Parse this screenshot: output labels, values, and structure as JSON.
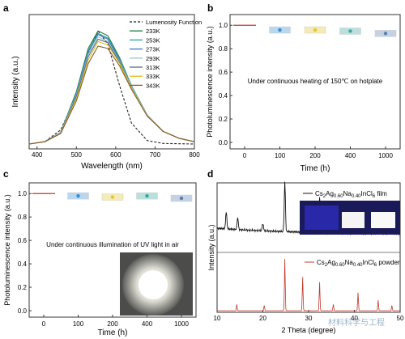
{
  "figure": {
    "watermark": "材料科学与工程"
  },
  "chart_data": [
    {
      "panel": "a",
      "type": "line",
      "xlabel": "Wavelength (nm)",
      "ylabel": "Intensity (a.u.)",
      "xlim": [
        380,
        800
      ],
      "xticks": [
        400,
        500,
        600,
        700,
        800
      ],
      "legend_position": "top-right",
      "series": [
        {
          "name": "Lumenosity Function",
          "color": "#222222",
          "dash": true,
          "x": [
            380,
            420,
            460,
            500,
            530,
            555,
            580,
            610,
            640,
            680,
            720,
            800
          ],
          "y": [
            0.0,
            0.02,
            0.12,
            0.42,
            0.78,
            0.97,
            0.86,
            0.5,
            0.18,
            0.03,
            0.005,
            0.0
          ]
        },
        {
          "name": "233K",
          "color": "#1b7a3a",
          "x": [
            380,
            420,
            460,
            500,
            530,
            555,
            580,
            610,
            640,
            680,
            720,
            760,
            800
          ],
          "y": [
            0.0,
            0.02,
            0.1,
            0.45,
            0.82,
            0.97,
            0.93,
            0.74,
            0.5,
            0.25,
            0.11,
            0.05,
            0.02
          ]
        },
        {
          "name": "253K",
          "color": "#2aa198",
          "x": [
            380,
            420,
            460,
            500,
            530,
            555,
            580,
            610,
            640,
            680,
            720,
            760,
            800
          ],
          "y": [
            0.0,
            0.02,
            0.1,
            0.44,
            0.8,
            0.95,
            0.91,
            0.73,
            0.5,
            0.25,
            0.11,
            0.05,
            0.02
          ]
        },
        {
          "name": "273K",
          "color": "#3c78c8",
          "x": [
            380,
            420,
            460,
            500,
            530,
            555,
            580,
            610,
            640,
            680,
            720,
            760,
            800
          ],
          "y": [
            0.0,
            0.02,
            0.1,
            0.43,
            0.79,
            0.94,
            0.9,
            0.72,
            0.49,
            0.25,
            0.11,
            0.05,
            0.02
          ]
        },
        {
          "name": "293K",
          "color": "#9ec2c4",
          "x": [
            380,
            420,
            460,
            500,
            530,
            555,
            580,
            610,
            640,
            680,
            720,
            760,
            800
          ],
          "y": [
            0.0,
            0.02,
            0.1,
            0.42,
            0.77,
            0.92,
            0.88,
            0.71,
            0.49,
            0.25,
            0.11,
            0.05,
            0.02
          ]
        },
        {
          "name": "313K",
          "color": "#556b8a",
          "x": [
            380,
            420,
            460,
            500,
            530,
            555,
            580,
            610,
            640,
            680,
            720,
            760,
            800
          ],
          "y": [
            0.0,
            0.02,
            0.09,
            0.41,
            0.75,
            0.9,
            0.87,
            0.7,
            0.48,
            0.24,
            0.11,
            0.05,
            0.02
          ]
        },
        {
          "name": "333K",
          "color": "#d9c21c",
          "x": [
            380,
            420,
            460,
            500,
            530,
            555,
            580,
            610,
            640,
            680,
            720,
            760,
            800
          ],
          "y": [
            0.0,
            0.02,
            0.09,
            0.39,
            0.72,
            0.88,
            0.85,
            0.69,
            0.48,
            0.24,
            0.11,
            0.05,
            0.02
          ]
        },
        {
          "name": "343K",
          "color": "#8a5a2b",
          "x": [
            380,
            420,
            460,
            500,
            530,
            555,
            580,
            610,
            640,
            680,
            720,
            760,
            800
          ],
          "y": [
            0.0,
            0.02,
            0.09,
            0.37,
            0.69,
            0.84,
            0.82,
            0.67,
            0.47,
            0.24,
            0.11,
            0.05,
            0.02
          ]
        }
      ]
    },
    {
      "panel": "b",
      "type": "scatter",
      "xlabel": "Time (h)",
      "ylabel": "Photoluminescence intensity (a.u.)",
      "annotation": "Under continuous heating of 150℃ on hotplate",
      "categories": [
        "0",
        "100",
        "200",
        "400",
        "1000"
      ],
      "ylim": [
        0.0,
        1.05
      ],
      "yticks": [
        0.0,
        0.2,
        0.4,
        0.6,
        0.8,
        1.0
      ],
      "values": [
        1.0,
        0.96,
        0.96,
        0.95,
        0.93
      ],
      "marker_colors": [
        "#c0392b",
        "#3a8fd0",
        "#e2c830",
        "#3aa8a0",
        "#5a7fb0"
      ]
    },
    {
      "panel": "c",
      "type": "scatter",
      "xlabel": "Time (h)",
      "ylabel": "Photoluminescence intensity (a.u.)",
      "annotation": "Under continuous illumination of UV light in air",
      "categories": [
        "0",
        "100",
        "200",
        "400",
        "1000"
      ],
      "ylim": [
        0.0,
        1.05
      ],
      "yticks": [
        0.0,
        0.2,
        0.4,
        0.6,
        0.8,
        1.0
      ],
      "values": [
        1.0,
        0.98,
        0.97,
        0.98,
        0.96
      ],
      "marker_colors": [
        "#c0392b",
        "#3a8fd0",
        "#e2c830",
        "#3aa8a0",
        "#5a7fb0"
      ]
    },
    {
      "panel": "d",
      "type": "line",
      "xlabel": "2 Theta (degree)",
      "ylabel": "Intensity (a.u.)",
      "xlim": [
        10,
        50
      ],
      "xticks": [
        10,
        20,
        30,
        40,
        50
      ],
      "series": [
        {
          "name_main": "Cs",
          "name_sub1": "2",
          "name_mid": "Ag",
          "name_sub2": "0.60",
          "name_mid2": "Na",
          "name_sub3": "0.40",
          "name_mid3": "InCl",
          "name_sub4": "6",
          "name_tail": " film",
          "color": "#111111",
          "peaks": [
            [
              12.0,
              0.35
            ],
            [
              14.5,
              0.25
            ],
            [
              20.0,
              0.15
            ],
            [
              24.8,
              1.0
            ],
            [
              28.6,
              0.4
            ],
            [
              32.4,
              0.7
            ],
            [
              35.3,
              0.45
            ],
            [
              40.6,
              0.3
            ],
            [
              45.2,
              0.35
            ],
            [
              48.0,
              0.15
            ]
          ]
        },
        {
          "name_main": "Cs",
          "name_sub1": "2",
          "name_mid": "Ag",
          "name_sub2": "0.60",
          "name_mid2": "Na",
          "name_sub3": "0.40",
          "name_mid3": "InCl",
          "name_sub4": "6",
          "name_tail": " powder",
          "color": "#c0392b",
          "peaks": [
            [
              14.3,
              0.12
            ],
            [
              20.3,
              0.1
            ],
            [
              24.8,
              1.0
            ],
            [
              28.7,
              0.65
            ],
            [
              32.4,
              0.55
            ],
            [
              35.4,
              0.12
            ],
            [
              40.8,
              0.35
            ],
            [
              45.2,
              0.2
            ],
            [
              48.2,
              0.1
            ]
          ]
        }
      ]
    }
  ]
}
